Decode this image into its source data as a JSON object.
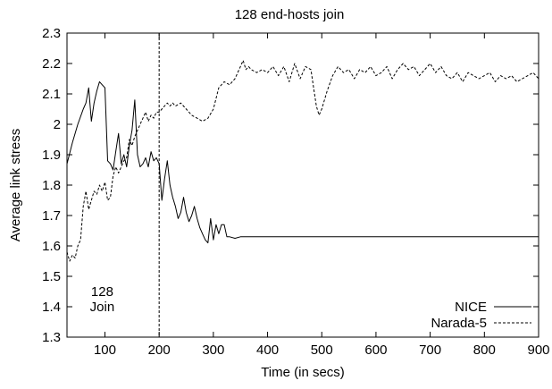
{
  "chart_data": {
    "type": "line",
    "title": "128 end-hosts join",
    "xlabel": "Time (in secs)",
    "ylabel": "Average link stress",
    "xlim": [
      30,
      900
    ],
    "ylim": [
      1.3,
      2.3
    ],
    "xticks": [
      100,
      200,
      300,
      400,
      500,
      600,
      700,
      800,
      900
    ],
    "xtick_labels": [
      "100",
      "200",
      "300",
      "400",
      "500",
      "600",
      "700",
      "800",
      "900"
    ],
    "yticks": [
      1.3,
      1.4,
      1.5,
      1.6,
      1.7,
      1.8,
      1.9,
      2.0,
      2.1,
      2.2,
      2.3
    ],
    "ytick_labels": [
      "1.3",
      "1.4",
      "1.5",
      "1.6",
      "1.7",
      "1.8",
      "1.9",
      "2",
      "2.1",
      "2.2",
      "2.3"
    ],
    "grid": false,
    "legend_position": "bottom-right",
    "vline": {
      "x": 200
    },
    "annotation": {
      "line1": "128",
      "line2": "Join",
      "x": 95,
      "y1": 1.45,
      "y2": 1.4
    },
    "series": [
      {
        "name": "NICE",
        "style": "solid",
        "x": [
          30,
          40,
          50,
          60,
          65,
          70,
          75,
          80,
          85,
          90,
          95,
          100,
          105,
          110,
          115,
          120,
          125,
          130,
          135,
          140,
          145,
          150,
          155,
          160,
          165,
          170,
          175,
          180,
          185,
          190,
          195,
          200,
          205,
          210,
          215,
          220,
          225,
          230,
          235,
          240,
          245,
          250,
          255,
          260,
          265,
          270,
          275,
          280,
          285,
          290,
          295,
          300,
          305,
          310,
          315,
          320,
          325,
          330,
          340,
          350,
          900
        ],
        "y": [
          1.87,
          1.94,
          2.0,
          2.05,
          2.07,
          2.12,
          2.01,
          2.07,
          2.11,
          2.14,
          2.13,
          2.12,
          1.88,
          1.87,
          1.85,
          1.91,
          1.97,
          1.87,
          1.9,
          1.86,
          1.93,
          1.98,
          2.08,
          1.9,
          1.86,
          1.87,
          1.89,
          1.86,
          1.91,
          1.88,
          1.89,
          1.87,
          1.75,
          1.82,
          1.88,
          1.8,
          1.76,
          1.73,
          1.69,
          1.71,
          1.76,
          1.71,
          1.68,
          1.7,
          1.73,
          1.69,
          1.66,
          1.64,
          1.62,
          1.61,
          1.69,
          1.62,
          1.67,
          1.64,
          1.67,
          1.67,
          1.63,
          1.63,
          1.625,
          1.63,
          1.63
        ]
      },
      {
        "name": "Narada-5",
        "style": "dashed",
        "x": [
          30,
          35,
          40,
          45,
          50,
          55,
          60,
          65,
          70,
          75,
          80,
          85,
          90,
          95,
          100,
          105,
          110,
          115,
          120,
          125,
          130,
          135,
          140,
          145,
          150,
          155,
          160,
          165,
          170,
          175,
          180,
          185,
          190,
          195,
          200,
          205,
          210,
          215,
          220,
          225,
          230,
          240,
          250,
          260,
          270,
          280,
          290,
          300,
          310,
          320,
          330,
          340,
          350,
          355,
          360,
          365,
          370,
          380,
          390,
          400,
          410,
          420,
          430,
          440,
          450,
          460,
          470,
          480,
          485,
          490,
          495,
          500,
          510,
          520,
          530,
          540,
          550,
          560,
          570,
          580,
          590,
          600,
          610,
          620,
          630,
          640,
          650,
          660,
          670,
          680,
          690,
          700,
          710,
          720,
          730,
          740,
          750,
          760,
          770,
          780,
          790,
          800,
          810,
          820,
          830,
          840,
          850,
          860,
          870,
          880,
          890,
          900
        ],
        "y": [
          1.58,
          1.55,
          1.57,
          1.56,
          1.6,
          1.62,
          1.73,
          1.78,
          1.72,
          1.75,
          1.78,
          1.77,
          1.8,
          1.78,
          1.81,
          1.75,
          1.76,
          1.83,
          1.86,
          1.84,
          1.86,
          1.88,
          1.89,
          1.95,
          1.93,
          1.96,
          1.98,
          2.0,
          2.02,
          2.04,
          2.01,
          2.03,
          2.02,
          2.04,
          2.04,
          2.05,
          2.06,
          2.07,
          2.06,
          2.07,
          2.06,
          2.07,
          2.05,
          2.03,
          2.02,
          2.01,
          2.02,
          2.05,
          2.12,
          2.14,
          2.13,
          2.15,
          2.19,
          2.21,
          2.18,
          2.19,
          2.18,
          2.17,
          2.18,
          2.17,
          2.19,
          2.16,
          2.19,
          2.14,
          2.2,
          2.15,
          2.19,
          2.18,
          2.12,
          2.06,
          2.03,
          2.05,
          2.11,
          2.16,
          2.19,
          2.17,
          2.18,
          2.15,
          2.18,
          2.17,
          2.19,
          2.16,
          2.17,
          2.19,
          2.15,
          2.18,
          2.2,
          2.18,
          2.19,
          2.16,
          2.18,
          2.2,
          2.17,
          2.19,
          2.16,
          2.15,
          2.17,
          2.14,
          2.17,
          2.16,
          2.15,
          2.16,
          2.17,
          2.14,
          2.16,
          2.15,
          2.16,
          2.14,
          2.15,
          2.16,
          2.17,
          2.15
        ]
      }
    ]
  }
}
